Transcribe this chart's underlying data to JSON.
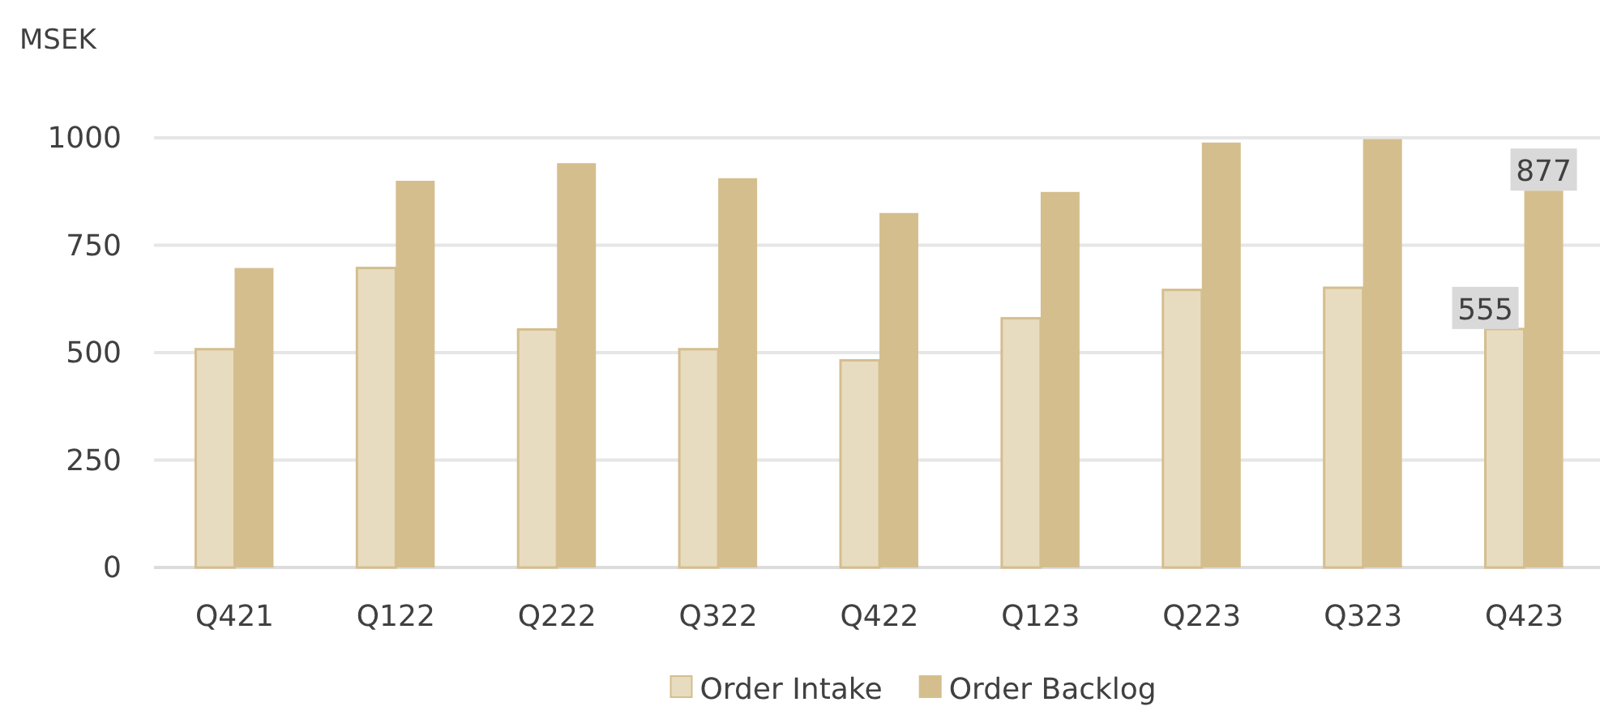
{
  "chart_data": {
    "type": "bar",
    "ylabel": "MSEK",
    "categories": [
      "Q421",
      "Q122",
      "Q222",
      "Q322",
      "Q422",
      "Q123",
      "Q223",
      "Q323",
      "Q423"
    ],
    "series": [
      {
        "name": "Order Intake",
        "color": "#e8dcc0",
        "values": [
          508,
          697,
          554,
          508,
          482,
          580,
          646,
          651,
          555
        ],
        "value_labels": [
          null,
          null,
          null,
          null,
          null,
          null,
          null,
          null,
          "555"
        ]
      },
      {
        "name": "Order Backlog",
        "color": "#d5be8e",
        "values": [
          697,
          900,
          941,
          906,
          825,
          874,
          989,
          997,
          877
        ],
        "value_labels": [
          null,
          null,
          null,
          null,
          null,
          null,
          null,
          null,
          "877"
        ]
      }
    ],
    "ylim": [
      0,
      1000
    ],
    "yticks": [
      0,
      250,
      500,
      750,
      1000
    ],
    "grid": "y",
    "legend": "bottom"
  }
}
